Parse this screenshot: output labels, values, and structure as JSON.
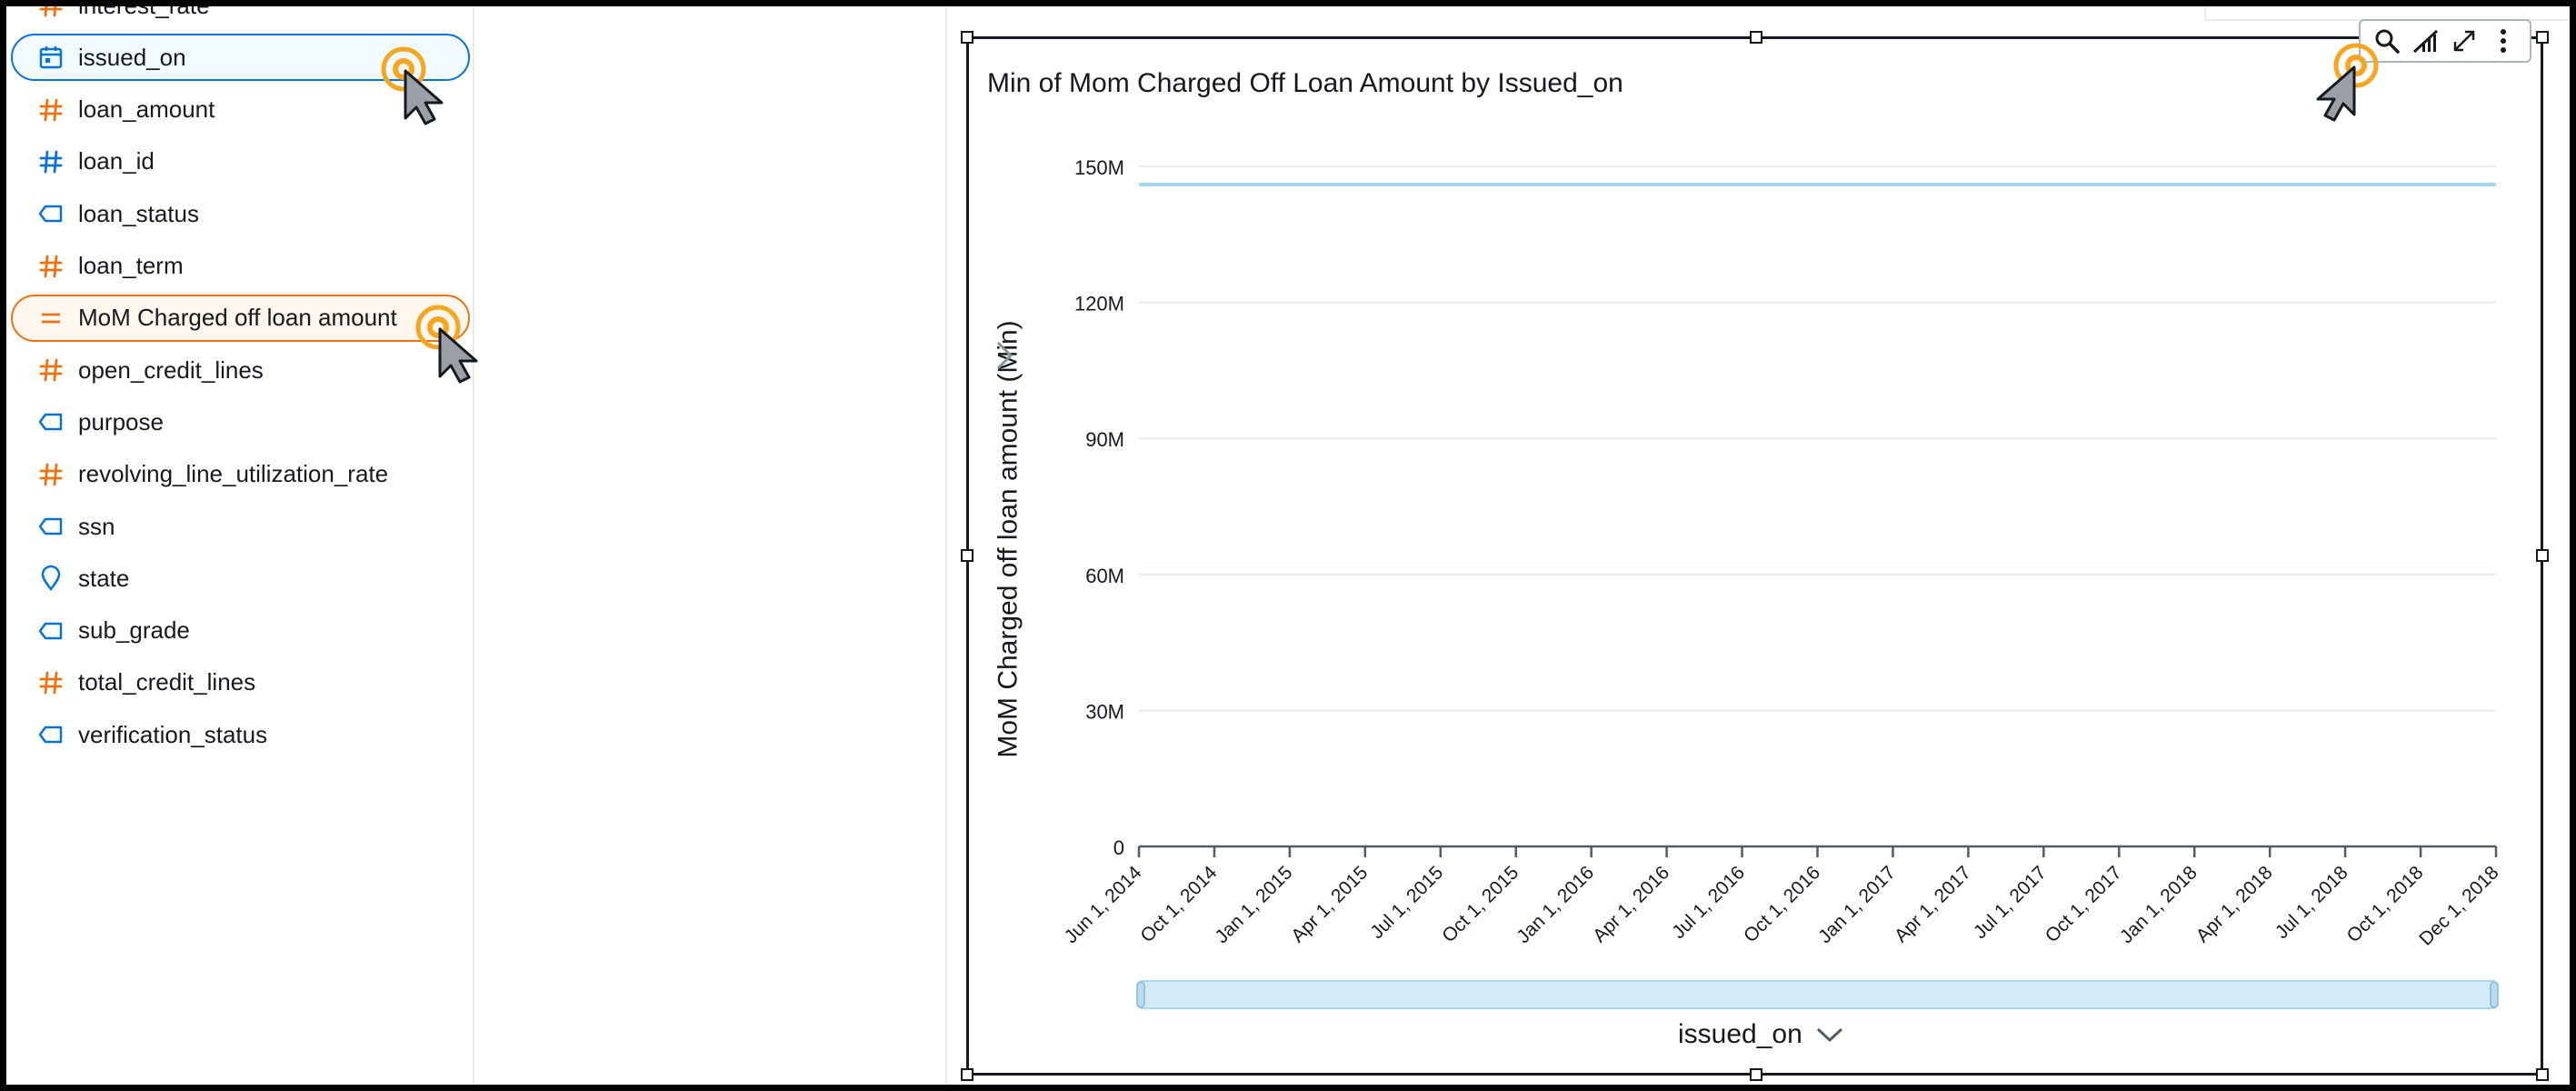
{
  "fields": [
    {
      "name": "interest_rate",
      "type": "number"
    },
    {
      "name": "issued_on",
      "type": "date",
      "selected": "blue"
    },
    {
      "name": "loan_amount",
      "type": "number"
    },
    {
      "name": "loan_id",
      "type": "number-blue"
    },
    {
      "name": "loan_status",
      "type": "string"
    },
    {
      "name": "loan_term",
      "type": "number"
    },
    {
      "name": "MoM Charged off loan amount",
      "type": "calculated",
      "selected": "orange"
    },
    {
      "name": "open_credit_lines",
      "type": "number"
    },
    {
      "name": "purpose",
      "type": "string"
    },
    {
      "name": "revolving_line_utilization_rate",
      "type": "number"
    },
    {
      "name": "ssn",
      "type": "string"
    },
    {
      "name": "state",
      "type": "geo"
    },
    {
      "name": "sub_grade",
      "type": "string"
    },
    {
      "name": "total_credit_lines",
      "type": "number"
    },
    {
      "name": "verification_status",
      "type": "string"
    }
  ],
  "icons": {
    "number": "hash-icon",
    "date": "calendar-icon",
    "string": "tag-icon",
    "calculated": "equals-icon",
    "geo": "map-pin-icon"
  },
  "colors": {
    "number": "#ec7211",
    "dimension": "#0972d3",
    "line": "#a8d8ee",
    "scrollbar": "#d4ebf7",
    "cursor_ring": "#f5a623"
  },
  "visual": {
    "title": "Min of Mom Charged Off Loan Amount by Issued_on",
    "toolbar": [
      "search-icon",
      "chart-type-icon",
      "expand-icon",
      "more-icon"
    ]
  },
  "chart_data": {
    "type": "line",
    "title": "Min of Mom Charged Off Loan Amount by Issued_on",
    "ylabel": "MoM Charged off loan amount (Min)",
    "xlabel": "issued_on",
    "ylim": [
      0,
      150000000
    ],
    "yticks": [
      0,
      30000000,
      60000000,
      90000000,
      120000000,
      150000000
    ],
    "ytick_labels": [
      "0",
      "30M",
      "60M",
      "90M",
      "120M",
      "150M"
    ],
    "xticks": [
      "Jun 1, 2014",
      "Oct 1, 2014",
      "Jan 1, 2015",
      "Apr 1, 2015",
      "Jul 1, 2015",
      "Oct 1, 2015",
      "Jan 1, 2016",
      "Apr 1, 2016",
      "Jul 1, 2016",
      "Oct 1, 2016",
      "Jan 1, 2017",
      "Apr 1, 2017",
      "Jul 1, 2017",
      "Oct 1, 2017",
      "Jan 1, 2018",
      "Apr 1, 2018",
      "Jul 1, 2018",
      "Oct 1, 2018",
      "Dec 1, 2018"
    ],
    "grid": true,
    "series": [
      {
        "x": [
          "Jun 1, 2014",
          "Dec 1, 2018"
        ],
        "values": [
          146000000,
          146000000
        ]
      }
    ]
  }
}
